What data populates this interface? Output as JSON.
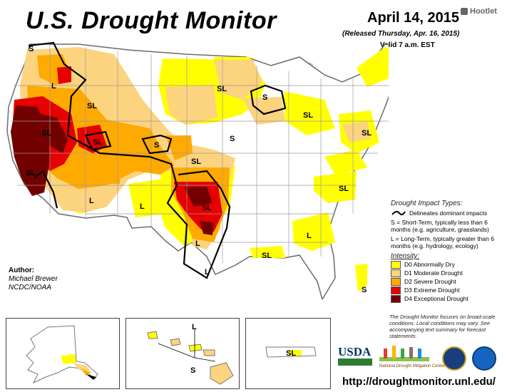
{
  "header": {
    "title": "U.S. Drought Monitor",
    "date": "April 14, 2015",
    "released": "(Released Thursday, Apr. 16, 2015)",
    "valid": "Valid 7 a.m. EST",
    "hootlet": "Hootlet"
  },
  "map_labels": [
    "S",
    "L",
    "SL",
    "SL",
    "SL",
    "SL",
    "SL",
    "SL",
    "S",
    "S",
    "S",
    "SL",
    "SL",
    "L",
    "L",
    "SL",
    "L",
    "L",
    "SL",
    "L",
    "SL",
    "S"
  ],
  "inset_labels": {
    "alaska": [],
    "hawaii": [
      "L",
      "S"
    ],
    "puerto_rico": [
      "SL"
    ]
  },
  "author": {
    "heading": "Author:",
    "name": "Michael Brewer",
    "org": "NCDC/NOAA"
  },
  "legend": {
    "impact_title": "Drought Impact Types:",
    "delineates": "Delineates dominant impacts",
    "short_term": "S = Short-Term, typically less than 6 months (e.g. agriculture, grasslands)",
    "long_term": "L = Long-Term, typically greater than 6 months (e.g. hydrology, ecology)",
    "intensity_title": "Intensity:",
    "categories": [
      {
        "label": "D0 Abnormally Dry",
        "color": "#ffff00"
      },
      {
        "label": "D1 Moderate Drought",
        "color": "#fcd37f"
      },
      {
        "label": "D2 Severe Drought",
        "color": "#ffaa00"
      },
      {
        "label": "D3 Extreme Drought",
        "color": "#e60000"
      },
      {
        "label": "D4 Exceptional Drought",
        "color": "#730000"
      }
    ]
  },
  "footnote": "The Drought Monitor focuses on broad-scale conditions. Local conditions may vary. See accompanying text summary for forecast statements.",
  "logos": {
    "usda": "USDA",
    "ndmc": "National Drought Mitigation Center"
  },
  "url": "http://droughtmonitor.unl.edu/"
}
